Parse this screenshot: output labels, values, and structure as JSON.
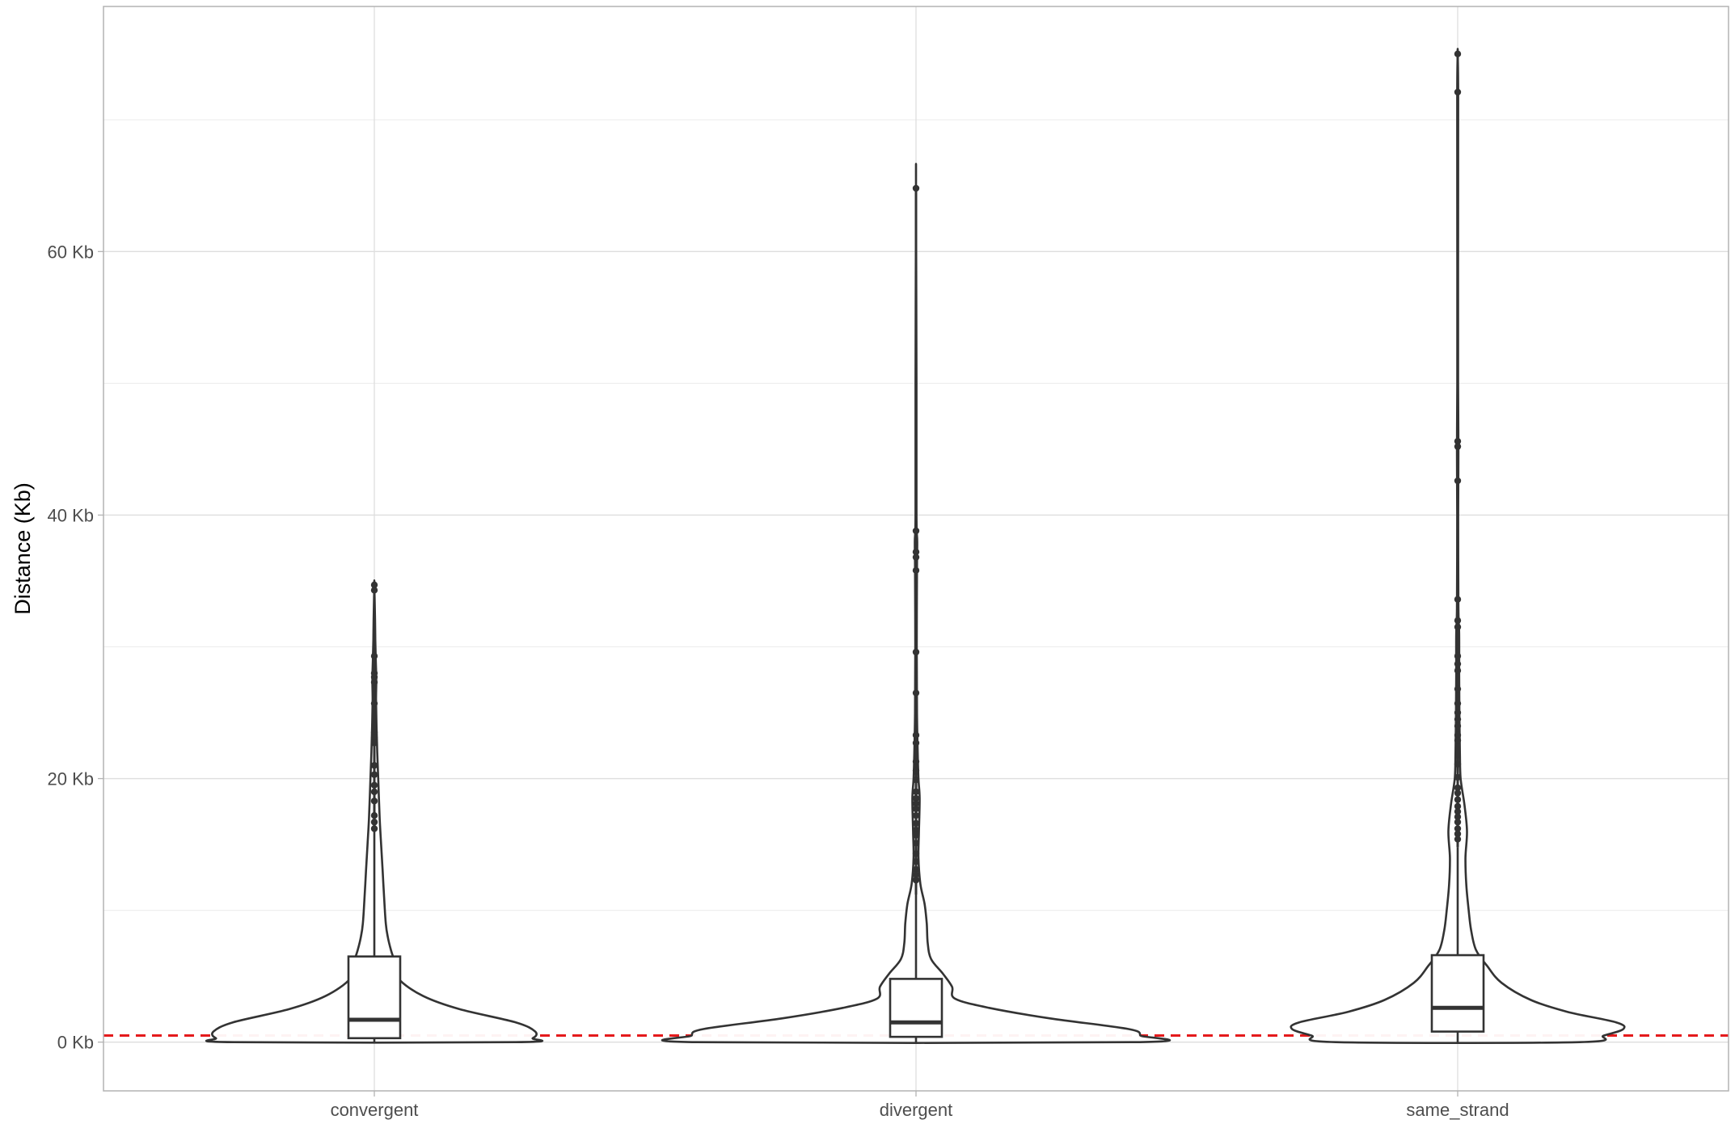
{
  "chart_data": {
    "type": "violin",
    "title": "",
    "xlabel": "",
    "ylabel": "Distance (Kb)",
    "ylim": [
      -3.7,
      78.6
    ],
    "y_ticks": [
      {
        "value": 0,
        "label": "0 Kb"
      },
      {
        "value": 20,
        "label": "20 Kb"
      },
      {
        "value": 40,
        "label": "40 Kb"
      },
      {
        "value": 60,
        "label": "60 Kb"
      }
    ],
    "y_minor_grid": [
      10,
      30,
      50,
      70
    ],
    "grid": true,
    "reference_line": {
      "value": 0.5,
      "style": "dashed",
      "color": "#e41a1c"
    },
    "categories": [
      "convergent",
      "divergent",
      "same_strand"
    ],
    "series": [
      {
        "category": "convergent",
        "box": {
          "q1": 0.3,
          "median": 1.7,
          "q3": 6.5,
          "whisker_low": 0,
          "whisker_high": 16
        },
        "max": 34.7,
        "violin_profile": [
          [
            0,
            0.58
          ],
          [
            0.3,
            0.65
          ],
          [
            0.8,
            0.66
          ],
          [
            1.5,
            0.58
          ],
          [
            2.5,
            0.35
          ],
          [
            3.5,
            0.2
          ],
          [
            4.8,
            0.1
          ],
          [
            6,
            0.085
          ],
          [
            7,
            0.068
          ],
          [
            8,
            0.055
          ],
          [
            9,
            0.047
          ],
          [
            11,
            0.04
          ],
          [
            13,
            0.034
          ],
          [
            15,
            0.028
          ],
          [
            17,
            0.022
          ],
          [
            20,
            0.016
          ],
          [
            22,
            0.012
          ],
          [
            24,
            0.009
          ],
          [
            26,
            0.007
          ],
          [
            27.5,
            0.008
          ],
          [
            29,
            0.006
          ],
          [
            30.5,
            0.004
          ],
          [
            32,
            0.003
          ],
          [
            34.7,
            0.0
          ]
        ],
        "outliers": [
          34.7,
          34.3,
          29.3,
          28,
          27.7,
          27.3,
          25.7,
          23.5,
          23.1,
          22.7,
          21,
          20.3,
          19.5,
          19,
          18.3,
          17.2,
          16.7,
          16.2
        ]
      },
      {
        "category": "divergent",
        "box": {
          "q1": 0.4,
          "median": 1.5,
          "q3": 4.8,
          "whisker_low": 0,
          "whisker_high": 11.2
        },
        "max": 64.8,
        "violin_profile": [
          [
            0,
            0.9
          ],
          [
            0.5,
            0.92
          ],
          [
            1,
            0.87
          ],
          [
            1.8,
            0.55
          ],
          [
            2.6,
            0.3
          ],
          [
            3.3,
            0.16
          ],
          [
            4.2,
            0.148
          ],
          [
            5.2,
            0.11
          ],
          [
            6.3,
            0.062
          ],
          [
            7.5,
            0.048
          ],
          [
            9,
            0.044
          ],
          [
            10.5,
            0.035
          ],
          [
            12,
            0.018
          ],
          [
            14,
            0.01
          ],
          [
            16,
            0.012
          ],
          [
            18.5,
            0.015
          ],
          [
            20,
            0.01
          ],
          [
            22,
            0.007
          ],
          [
            25,
            0.004
          ],
          [
            30,
            0.003
          ],
          [
            36,
            0.004
          ],
          [
            38,
            0.005
          ],
          [
            40,
            0.002
          ],
          [
            50,
            0.002
          ],
          [
            64.8,
            0.0
          ]
        ],
        "outliers": [
          64.8,
          38.8,
          37.2,
          36.8,
          35.8,
          29.6,
          26.5,
          23.3,
          22.7,
          21.3,
          20.6,
          19.9,
          19,
          18.5,
          18.1,
          17.7,
          17.2,
          16.6,
          16.1,
          15.7,
          15.1,
          14.3,
          13.7,
          13.1,
          12.7,
          12.3
        ]
      },
      {
        "category": "same_strand",
        "box": {
          "q1": 0.8,
          "median": 2.6,
          "q3": 6.6,
          "whisker_low": 0,
          "whisker_high": 14.8
        },
        "max": 75,
        "violin_profile": [
          [
            0,
            0.5
          ],
          [
            0.5,
            0.6
          ],
          [
            1,
            0.68
          ],
          [
            1.5,
            0.65
          ],
          [
            2.3,
            0.45
          ],
          [
            3.2,
            0.3
          ],
          [
            4.5,
            0.18
          ],
          [
            5.8,
            0.12
          ],
          [
            7,
            0.075
          ],
          [
            8.5,
            0.055
          ],
          [
            10,
            0.045
          ],
          [
            12,
            0.035
          ],
          [
            14,
            0.032
          ],
          [
            16,
            0.038
          ],
          [
            18,
            0.028
          ],
          [
            20,
            0.012
          ],
          [
            22,
            0.009
          ],
          [
            25,
            0.007
          ],
          [
            28,
            0.006
          ],
          [
            31,
            0.006
          ],
          [
            33,
            0.003
          ],
          [
            40,
            0.002
          ],
          [
            45,
            0.003
          ],
          [
            50,
            0.0015
          ],
          [
            60,
            0.0015
          ],
          [
            72,
            0.002
          ],
          [
            75,
            0.0
          ]
        ],
        "outliers": [
          75,
          72.1,
          45.6,
          45.2,
          42.6,
          33.6,
          32,
          31.5,
          29.3,
          28.7,
          28.2,
          26.8,
          25.7,
          25,
          24.5,
          24,
          23.3,
          22.9,
          21.1,
          20.1,
          19.3,
          18.9,
          18.4,
          17.9,
          17.5,
          17.1,
          16.7,
          16.2,
          15.8,
          15.4
        ]
      }
    ]
  }
}
